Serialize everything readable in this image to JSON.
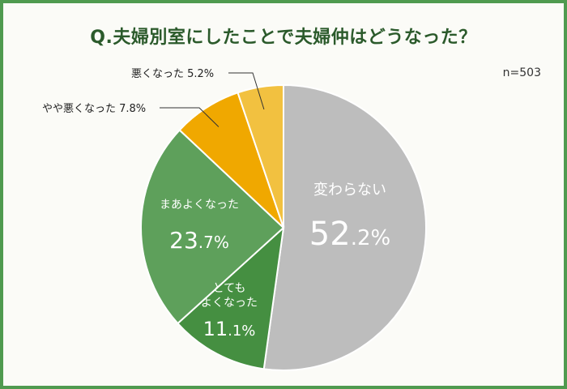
{
  "title": "Q.夫婦別室にしたことで夫婦仲はどうなった？",
  "sample_size": "n=503",
  "chart_data": {
    "type": "pie",
    "start_angle_deg": 0,
    "direction": "clockwise",
    "slices": [
      {
        "label": "変わらない",
        "value": 52.2,
        "value_text": "52.2%",
        "color": "#bdbdbd"
      },
      {
        "label": "とても\nよくなった",
        "value": 11.1,
        "value_text": "11.1%",
        "color": "#458f41"
      },
      {
        "label": "まあよくなった",
        "value": 23.7,
        "value_text": "23.7%",
        "color": "#5ea05b"
      },
      {
        "label": "やや悪くなった",
        "value": 7.8,
        "value_text": "7.8%",
        "color": "#f0a800"
      },
      {
        "label": "悪くなった",
        "value": 5.2,
        "value_text": "5.2%",
        "color": "#f2c140"
      }
    ]
  }
}
